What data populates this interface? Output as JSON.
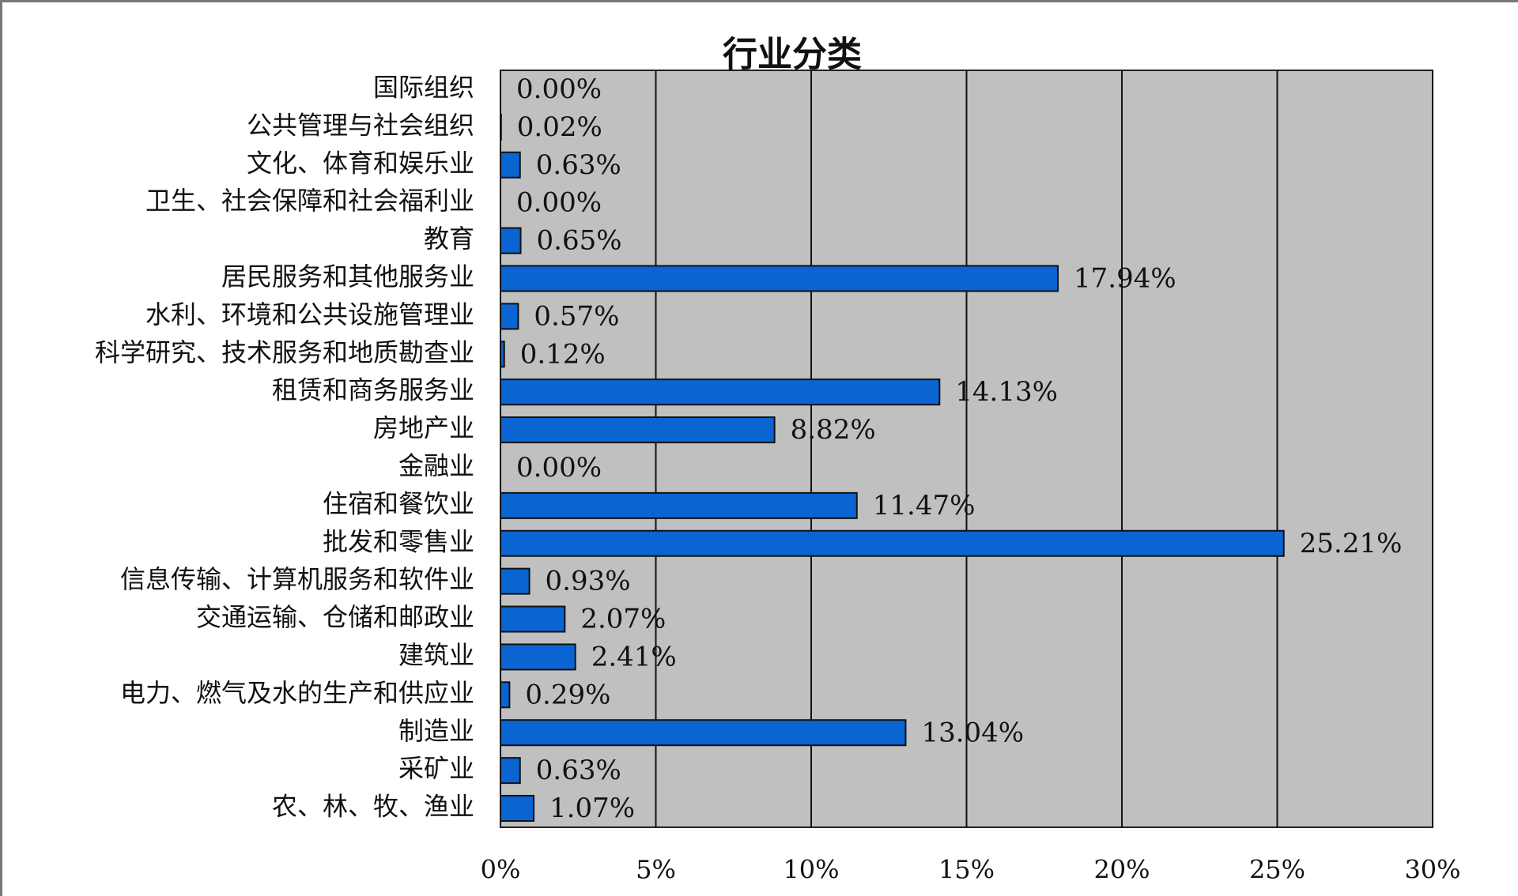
{
  "chart_data": {
    "type": "bar",
    "orientation": "horizontal",
    "title": "行业分类",
    "categories": [
      "国际组织",
      "公共管理与社会组织",
      "文化、体育和娱乐业",
      "卫生、社会保障和社会福利业",
      "教育",
      "居民服务和其他服务业",
      "水利、环境和公共设施管理业",
      "科学研究、技术服务和地质勘查业",
      "租赁和商务服务业",
      "房地产业",
      "金融业",
      "住宿和餐饮业",
      "批发和零售业",
      "信息传输、计算机服务和软件业",
      "交通运输、仓储和邮政业",
      "建筑业",
      "电力、燃气及水的生产和供应业",
      "制造业",
      "采矿业",
      "农、林、牧、渔业"
    ],
    "values": [
      0.0,
      0.02,
      0.63,
      0.0,
      0.65,
      17.94,
      0.57,
      0.12,
      14.13,
      8.82,
      0.0,
      11.47,
      25.21,
      0.93,
      2.07,
      2.41,
      0.29,
      13.04,
      0.63,
      1.07
    ],
    "value_labels": [
      "0.00%",
      "0.02%",
      "0.63%",
      "0.00%",
      "0.65%",
      "17.94%",
      "0.57%",
      "0.12%",
      "14.13%",
      "8.82%",
      "0.00%",
      "11.47%",
      "25.21%",
      "0.93%",
      "2.07%",
      "2.41%",
      "0.29%",
      "13.04%",
      "0.63%",
      "1.07%"
    ],
    "color": "#0a64d2",
    "xlim": [
      0,
      30
    ],
    "xticks": [
      {
        "value": 0,
        "label": "0%"
      },
      {
        "value": 5,
        "label": "5%"
      },
      {
        "value": 10,
        "label": "10%"
      },
      {
        "value": 15,
        "label": "15%"
      },
      {
        "value": 20,
        "label": "20%"
      },
      {
        "value": 25,
        "label": "25%"
      },
      {
        "value": 30,
        "label": "30%"
      }
    ],
    "grid": true
  }
}
